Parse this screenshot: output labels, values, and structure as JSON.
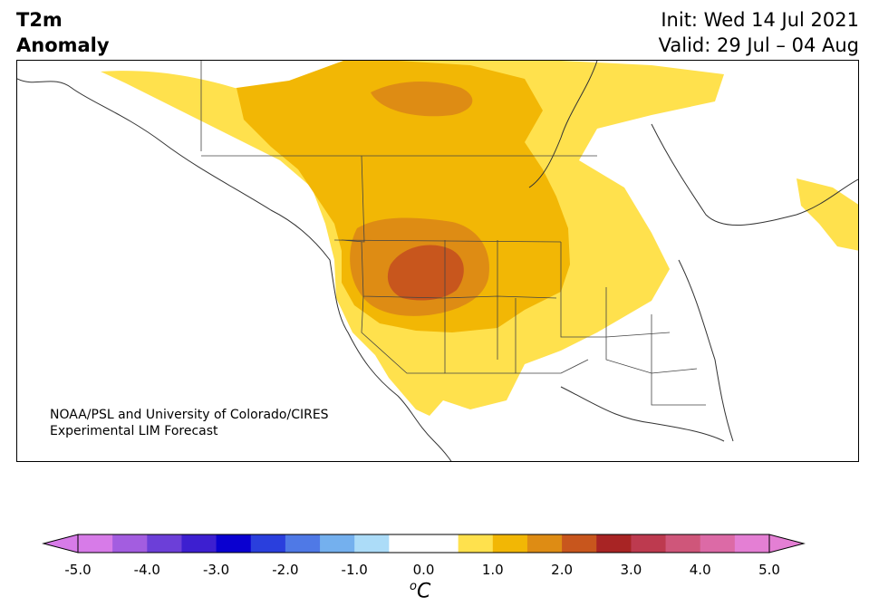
{
  "title": {
    "left_line1": "T2m",
    "left_line2": "Anomaly",
    "right_line1": "Init: Wed 14 Jul 2021",
    "right_line2": "Valid: 29 Jul – 04 Aug"
  },
  "credit": {
    "line1": "NOAA/PSL and University of Colorado/CIRES",
    "line2": "Experimental LIM Forecast"
  },
  "colorbar": {
    "unit_symbol": "o",
    "unit_letter": "C",
    "tick_labels": [
      "-5.0",
      "-4.0",
      "-3.0",
      "-2.0",
      "-1.0",
      "0.0",
      "1.0",
      "2.0",
      "3.0",
      "4.0",
      "5.0"
    ],
    "bins": [
      {
        "range": [
          -5.0,
          -4.5
        ],
        "color": "#d77be8"
      },
      {
        "range": [
          -4.5,
          -4.0
        ],
        "color": "#a35de0"
      },
      {
        "range": [
          -4.0,
          -3.5
        ],
        "color": "#6c3fd8"
      },
      {
        "range": [
          -3.5,
          -3.0
        ],
        "color": "#3d1fd0"
      },
      {
        "range": [
          -3.0,
          -2.5
        ],
        "color": "#0a00d0"
      },
      {
        "range": [
          -2.5,
          -2.0
        ],
        "color": "#2a3fdd"
      },
      {
        "range": [
          -2.0,
          -1.5
        ],
        "color": "#4f79e6"
      },
      {
        "range": [
          -1.5,
          -1.0
        ],
        "color": "#74b0ee"
      },
      {
        "range": [
          -1.0,
          -0.5
        ],
        "color": "#acdcf8"
      },
      {
        "range": [
          -0.5,
          0.0
        ],
        "color": "#ffffff"
      },
      {
        "range": [
          0.0,
          0.5
        ],
        "color": "#ffffff"
      },
      {
        "range": [
          0.5,
          1.0
        ],
        "color": "#ffe14d"
      },
      {
        "range": [
          1.0,
          1.5
        ],
        "color": "#f2b705"
      },
      {
        "range": [
          1.5,
          2.0
        ],
        "color": "#de8c14"
      },
      {
        "range": [
          2.0,
          2.5
        ],
        "color": "#c8561d"
      },
      {
        "range": [
          2.5,
          3.0
        ],
        "color": "#a82424"
      },
      {
        "range": [
          3.0,
          3.5
        ],
        "color": "#bd3a4f"
      },
      {
        "range": [
          3.5,
          4.0
        ],
        "color": "#cf567a"
      },
      {
        "range": [
          4.0,
          4.5
        ],
        "color": "#dc6aa6"
      },
      {
        "range": [
          4.5,
          5.0
        ],
        "color": "#e47fd4"
      }
    ],
    "extend_low_color": "#d77be8",
    "extend_high_color": "#e47fd4"
  },
  "map": {
    "region": "North America",
    "anomaly_levels": {
      "level_0_5_1_0": "#ffe14d",
      "level_1_0_1_5": "#f2b705",
      "level_1_5_2_0": "#de8c14",
      "level_2_0_2_5": "#c8561d"
    }
  }
}
